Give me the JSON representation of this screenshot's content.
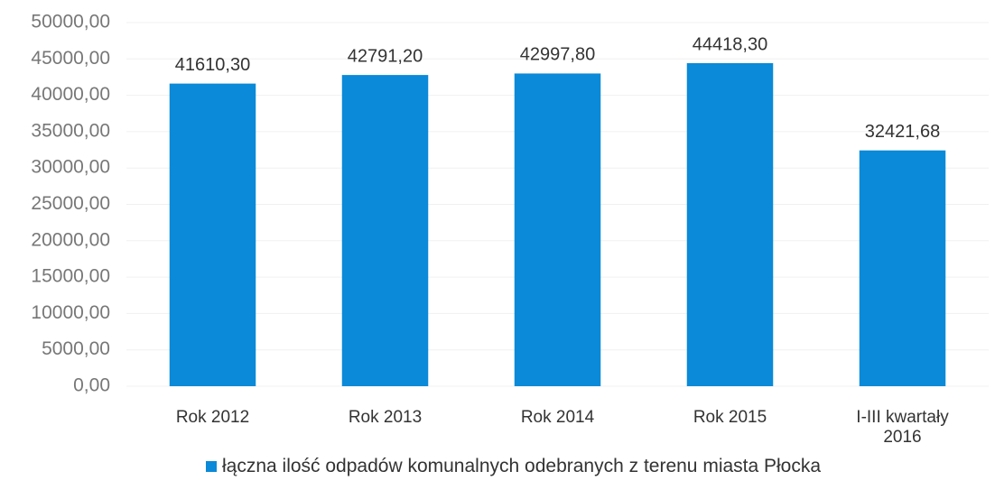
{
  "chart_data": {
    "type": "bar",
    "categories": [
      "Rok 2012",
      "Rok 2013",
      "Rok 2014",
      "Rok 2015",
      "I-III kwartały 2016"
    ],
    "series": [
      {
        "name": "łączna ilość odpadów komunalnych odebranych z terenu miasta Płocka",
        "color": "#0a8ad8",
        "values": [
          41610.3,
          42791.2,
          42997.8,
          44418.3,
          32421.68
        ],
        "value_labels": [
          "41610,30",
          "42791,20",
          "42997,80",
          "44418,30",
          "32421,68"
        ]
      }
    ],
    "ylim": [
      0,
      50000
    ],
    "yticks": [
      {
        "value": 0,
        "label": "0,00"
      },
      {
        "value": 5000,
        "label": "5000,00"
      },
      {
        "value": 10000,
        "label": "10000,00"
      },
      {
        "value": 15000,
        "label": "15000,00"
      },
      {
        "value": 20000,
        "label": "20000,00"
      },
      {
        "value": 25000,
        "label": "25000,00"
      },
      {
        "value": 30000,
        "label": "30000,00"
      },
      {
        "value": 35000,
        "label": "35000,00"
      },
      {
        "value": 40000,
        "label": "40000,00"
      },
      {
        "value": 45000,
        "label": "45000,00"
      },
      {
        "value": 50000,
        "label": "50000,00"
      }
    ],
    "grid": true
  }
}
